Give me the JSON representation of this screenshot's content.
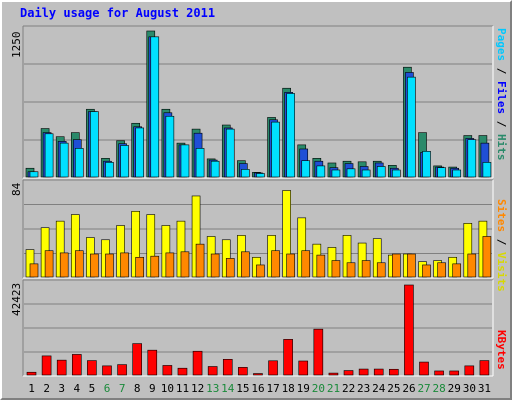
{
  "title": "Daily usage for August 2011",
  "colors": {
    "hits": "#2a8a6a",
    "files": "#1f4fd6",
    "pages": "#00e0ff",
    "visits": "#ffff00",
    "sites": "#ff8800",
    "kbytes": "#ff0000",
    "weekday": "#000000",
    "weekend": "#1a8a3a",
    "panel_bg": "#c0c0c0",
    "grid": "#808080"
  },
  "legend": {
    "top": [
      {
        "label": "Pages",
        "color": "#00c8ff"
      },
      {
        "label": " / ",
        "color": "#000000"
      },
      {
        "label": "Files",
        "color": "#0000ff"
      },
      {
        "label": " / ",
        "color": "#000000"
      },
      {
        "label": "Hits",
        "color": "#2a8a6a"
      }
    ],
    "middle": [
      {
        "label": "Sites",
        "color": "#ff8800"
      },
      {
        "label": " / ",
        "color": "#000000"
      },
      {
        "label": "Visits",
        "color": "#d8d800"
      }
    ],
    "bottom": [
      {
        "label": "KBytes",
        "color": "#ff0000"
      }
    ]
  },
  "chart_data": {
    "type": "bar",
    "categories": [
      "1",
      "2",
      "3",
      "4",
      "5",
      "6",
      "7",
      "8",
      "9",
      "10",
      "11",
      "12",
      "13",
      "14",
      "15",
      "16",
      "17",
      "18",
      "19",
      "20",
      "21",
      "22",
      "23",
      "24",
      "25",
      "26",
      "27",
      "28",
      "29",
      "30",
      "31"
    ],
    "weekend_days": [
      "6",
      "7",
      "13",
      "14",
      "20",
      "21",
      "27",
      "28"
    ],
    "panels": [
      {
        "name": "usage",
        "ymax_label": "1250",
        "ylim": [
          0,
          1250
        ],
        "series": [
          {
            "name": "Hits",
            "values": [
              75,
              415,
              345,
              380,
              580,
              160,
              310,
              460,
              1250,
              580,
              290,
              410,
              155,
              445,
              140,
              40,
              510,
              760,
              275,
              160,
              120,
              135,
              130,
              135,
              100,
              940,
              380,
              95,
              85,
              355,
              355
            ]
          },
          {
            "name": "Files",
            "values": [
              45,
              380,
              305,
              320,
              560,
              135,
              285,
              430,
              1200,
              550,
              275,
              375,
              145,
              420,
              115,
              35,
              490,
              725,
              240,
              135,
              80,
              115,
              90,
              120,
              75,
              895,
              210,
              85,
              75,
              330,
              290
            ]
          },
          {
            "name": "Pages",
            "values": [
              45,
              370,
              290,
              245,
              560,
              125,
              270,
              420,
              1200,
              520,
              275,
              245,
              135,
              410,
              65,
              30,
              470,
              715,
              140,
              95,
              60,
              70,
              60,
              90,
              60,
              855,
              220,
              80,
              60,
              320,
              125
            ]
          }
        ]
      },
      {
        "name": "visits",
        "ymax_label": "84",
        "ylim": [
          0,
          84
        ],
        "series": [
          {
            "name": "Visits",
            "values": [
              25,
              45,
              51,
              57,
              36,
              34,
              47,
              60,
              57,
              47,
              51,
              74,
              37,
              34,
              38,
              18,
              38,
              79,
              54,
              30,
              27,
              38,
              31,
              35,
              20,
              21,
              14,
              15,
              18,
              49,
              51
            ]
          },
          {
            "name": "Sites",
            "values": [
              12,
              24,
              22,
              24,
              21,
              21,
              22,
              18,
              19,
              22,
              23,
              30,
              21,
              17,
              23,
              11,
              24,
              21,
              24,
              20,
              15,
              13,
              15,
              13,
              21,
              21,
              11,
              13,
              12,
              21,
              37
            ]
          }
        ]
      },
      {
        "name": "kbytes",
        "ymax_label": "42423",
        "ylim": [
          0,
          42423
        ],
        "series": [
          {
            "name": "KBytes",
            "values": [
              1300,
              9000,
              7000,
              9700,
              6800,
              4300,
              4900,
              14800,
              11700,
              4500,
              3200,
              11200,
              4000,
              7400,
              3600,
              700,
              6700,
              16800,
              6600,
              21600,
              900,
              2100,
              2800,
              2800,
              2700,
              42423,
              6100,
              1900,
              1900,
              4300,
              6800
            ]
          }
        ]
      }
    ]
  }
}
